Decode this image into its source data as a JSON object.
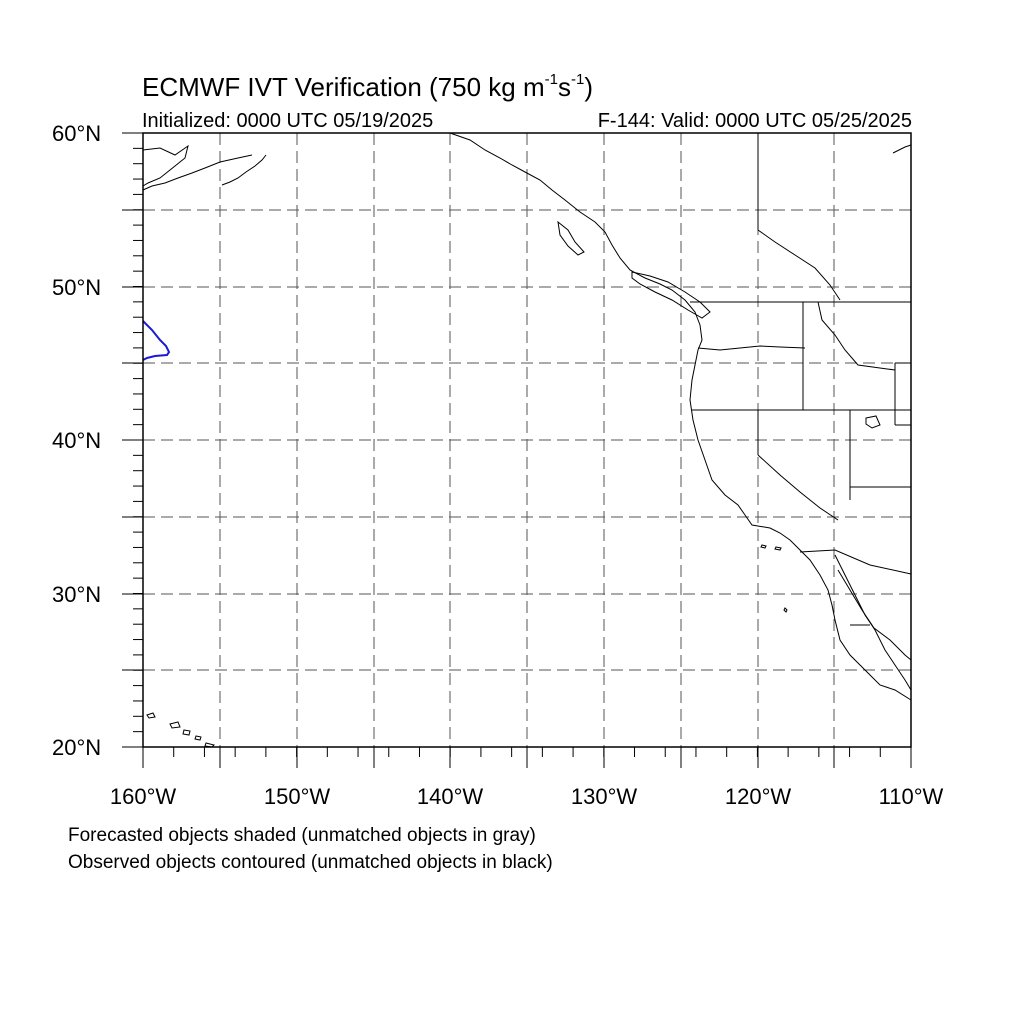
{
  "title": {
    "main": "ECMWF IVT Verification (750 kg m",
    "exp1": "-1",
    "mid": "s",
    "exp2": "-1",
    "close": ")"
  },
  "initialized": "Initialized: 0000 UTC 05/19/2025",
  "valid": "F-144: Valid: 0000 UTC 05/25/2025",
  "lat_labels": [
    "60°N",
    "50°N",
    "40°N",
    "30°N",
    "20°N"
  ],
  "lon_labels": [
    "160°W",
    "150°W",
    "140°W",
    "130°W",
    "120°W",
    "110°W"
  ],
  "notes": [
    "Forecasted objects shaded (unmatched objects in gray)",
    "Observed objects contoured (unmatched objects in black)"
  ],
  "map_extent": {
    "lon_min": -160,
    "lon_max": -110,
    "lat_min": 20,
    "lat_max": 60
  },
  "colors": {
    "observed_contour": "#1a1ad4",
    "coastline": "#000000",
    "grid": "#555555"
  }
}
